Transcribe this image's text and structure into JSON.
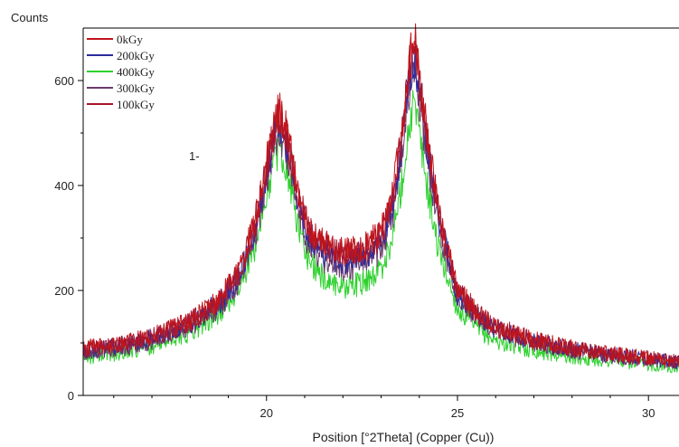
{
  "chart_data": {
    "type": "line",
    "title": "",
    "xlabel": "Position [°2Theta] (Copper (Cu))",
    "ylabel": "Counts",
    "xlim": [
      15.2,
      30.8
    ],
    "ylim": [
      0,
      700
    ],
    "xticks": [
      20,
      25,
      30
    ],
    "yticks": [
      0,
      200,
      400,
      600
    ],
    "grid": false,
    "legend_position": "top-left",
    "annotation": "1-",
    "series": [
      {
        "name": "0kGy",
        "color": "#c0141c",
        "points": [
          [
            15.2,
            90
          ],
          [
            16,
            96
          ],
          [
            17,
            112
          ],
          [
            18,
            142
          ],
          [
            18.8,
            185
          ],
          [
            19.3,
            240
          ],
          [
            19.7,
            330
          ],
          [
            20.0,
            440
          ],
          [
            20.2,
            520
          ],
          [
            20.35,
            545
          ],
          [
            20.55,
            500
          ],
          [
            20.8,
            390
          ],
          [
            21.1,
            320
          ],
          [
            21.5,
            290
          ],
          [
            22.0,
            275
          ],
          [
            22.5,
            280
          ],
          [
            23.0,
            310
          ],
          [
            23.3,
            380
          ],
          [
            23.55,
            510
          ],
          [
            23.75,
            640
          ],
          [
            23.85,
            690
          ],
          [
            23.95,
            640
          ],
          [
            24.2,
            500
          ],
          [
            24.5,
            350
          ],
          [
            25.0,
            200
          ],
          [
            25.5,
            160
          ],
          [
            26,
            130
          ],
          [
            27,
            105
          ],
          [
            28,
            90
          ],
          [
            29,
            80
          ],
          [
            30,
            72
          ],
          [
            30.8,
            65
          ]
        ]
      },
      {
        "name": "200kGy",
        "color": "#2a2a9e",
        "points": [
          [
            15.2,
            85
          ],
          [
            16,
            92
          ],
          [
            17,
            108
          ],
          [
            18,
            138
          ],
          [
            18.8,
            178
          ],
          [
            19.3,
            232
          ],
          [
            19.7,
            318
          ],
          [
            20.0,
            420
          ],
          [
            20.2,
            495
          ],
          [
            20.35,
            515
          ],
          [
            20.55,
            478
          ],
          [
            20.8,
            375
          ],
          [
            21.1,
            305
          ],
          [
            21.5,
            272
          ],
          [
            22.0,
            258
          ],
          [
            22.5,
            264
          ],
          [
            23.0,
            292
          ],
          [
            23.3,
            360
          ],
          [
            23.55,
            485
          ],
          [
            23.75,
            610
          ],
          [
            23.85,
            650
          ],
          [
            23.95,
            610
          ],
          [
            24.2,
            480
          ],
          [
            24.5,
            340
          ],
          [
            25.0,
            195
          ],
          [
            25.5,
            155
          ],
          [
            26,
            126
          ],
          [
            27,
            102
          ],
          [
            28,
            88
          ],
          [
            29,
            78
          ],
          [
            30,
            70
          ],
          [
            30.8,
            62
          ]
        ]
      },
      {
        "name": "400kGy",
        "color": "#2ed12e",
        "points": [
          [
            15.2,
            72
          ],
          [
            16,
            80
          ],
          [
            17,
            94
          ],
          [
            18,
            120
          ],
          [
            18.8,
            158
          ],
          [
            19.3,
            205
          ],
          [
            19.7,
            285
          ],
          [
            20.0,
            380
          ],
          [
            20.2,
            450
          ],
          [
            20.35,
            470
          ],
          [
            20.55,
            430
          ],
          [
            20.8,
            330
          ],
          [
            21.1,
            260
          ],
          [
            21.5,
            222
          ],
          [
            22.0,
            208
          ],
          [
            22.5,
            214
          ],
          [
            23.0,
            240
          ],
          [
            23.3,
            300
          ],
          [
            23.55,
            410
          ],
          [
            23.75,
            520
          ],
          [
            23.85,
            555
          ],
          [
            23.95,
            520
          ],
          [
            24.2,
            400
          ],
          [
            24.5,
            280
          ],
          [
            25.0,
            165
          ],
          [
            25.5,
            128
          ],
          [
            26,
            104
          ],
          [
            27,
            86
          ],
          [
            28,
            74
          ],
          [
            29,
            66
          ],
          [
            30,
            60
          ],
          [
            30.8,
            55
          ]
        ]
      },
      {
        "name": "300kGy",
        "color": "#6a3a6a",
        "points": [
          [
            15.2,
            80
          ],
          [
            16,
            88
          ],
          [
            17,
            102
          ],
          [
            18,
            130
          ],
          [
            18.8,
            170
          ],
          [
            19.3,
            222
          ],
          [
            19.7,
            305
          ],
          [
            20.0,
            405
          ],
          [
            20.2,
            478
          ],
          [
            20.35,
            498
          ],
          [
            20.55,
            462
          ],
          [
            20.8,
            360
          ],
          [
            21.1,
            290
          ],
          [
            21.5,
            258
          ],
          [
            22.0,
            244
          ],
          [
            22.5,
            250
          ],
          [
            23.0,
            278
          ],
          [
            23.3,
            342
          ],
          [
            23.55,
            465
          ],
          [
            23.75,
            585
          ],
          [
            23.85,
            625
          ],
          [
            23.95,
            585
          ],
          [
            24.2,
            458
          ],
          [
            24.5,
            325
          ],
          [
            25.0,
            188
          ],
          [
            25.5,
            150
          ],
          [
            26,
            122
          ],
          [
            27,
            99
          ],
          [
            28,
            85
          ],
          [
            29,
            75
          ],
          [
            30,
            68
          ],
          [
            30.8,
            60
          ]
        ]
      },
      {
        "name": "100kGy",
        "color": "#a8142a",
        "points": [
          [
            15.2,
            88
          ],
          [
            16,
            95
          ],
          [
            17,
            110
          ],
          [
            18,
            140
          ],
          [
            18.8,
            182
          ],
          [
            19.3,
            236
          ],
          [
            19.7,
            325
          ],
          [
            20.0,
            432
          ],
          [
            20.2,
            510
          ],
          [
            20.35,
            535
          ],
          [
            20.55,
            492
          ],
          [
            20.8,
            385
          ],
          [
            21.1,
            315
          ],
          [
            21.5,
            284
          ],
          [
            22.0,
            270
          ],
          [
            22.5,
            276
          ],
          [
            23.0,
            305
          ],
          [
            23.3,
            372
          ],
          [
            23.55,
            500
          ],
          [
            23.75,
            628
          ],
          [
            23.85,
            672
          ],
          [
            23.95,
            628
          ],
          [
            24.2,
            492
          ],
          [
            24.5,
            346
          ],
          [
            25.0,
            198
          ],
          [
            25.5,
            158
          ],
          [
            26,
            128
          ],
          [
            27,
            104
          ],
          [
            28,
            89
          ],
          [
            29,
            79
          ],
          [
            30,
            71
          ],
          [
            30.8,
            64
          ]
        ]
      }
    ]
  }
}
